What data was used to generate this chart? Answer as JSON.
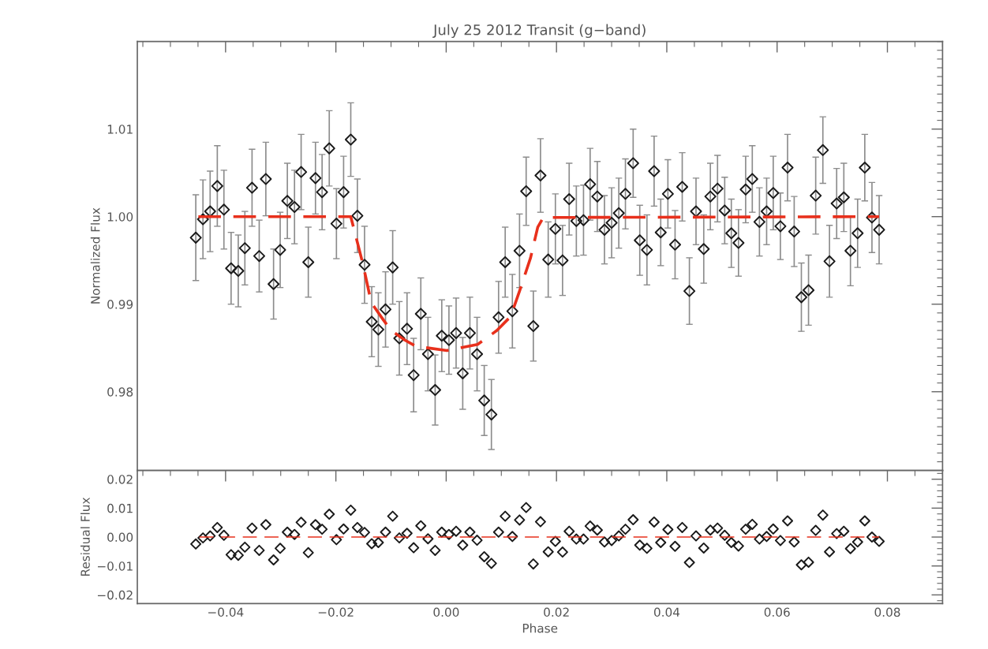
{
  "chart_data": [
    {
      "type": "scatter",
      "title": "July 25 2012 Transit (g−band)",
      "ylabel": "Normalized Flux",
      "xlim": [
        -0.056,
        0.09
      ],
      "ylim": [
        0.971,
        1.02
      ],
      "xticks": [
        {
          "value": -0.04,
          "label": null
        },
        {
          "value": -0.02,
          "label": null
        },
        {
          "value": 0.0,
          "label": null
        },
        {
          "value": 0.02,
          "label": null
        },
        {
          "value": 0.04,
          "label": null
        },
        {
          "value": 0.06,
          "label": null
        },
        {
          "value": 0.08,
          "label": null
        }
      ],
      "yticks": [
        0.98,
        0.99,
        {
          "value": 1.0,
          "label": "1.00"
        },
        1.01
      ],
      "tick_labels": "y",
      "series": [
        {
          "marker": "diamond",
          "color": "#1a1a1a",
          "x": [
            -0.0454,
            -0.0441,
            -0.0428,
            -0.0415,
            -0.0403,
            -0.039,
            -0.0377,
            -0.0365,
            -0.0352,
            -0.0339,
            -0.0327,
            -0.0313,
            -0.0301,
            -0.0288,
            -0.0275,
            -0.0263,
            -0.025,
            -0.0237,
            -0.0225,
            -0.0212,
            -0.0199,
            -0.0186,
            -0.0173,
            -0.0161,
            -0.0148,
            -0.0135,
            -0.0123,
            -0.011,
            -0.0097,
            -0.0085,
            -0.0071,
            -0.0059,
            -0.0046,
            -0.0033,
            -0.002,
            -0.0008,
            0.0005,
            0.0018,
            0.003,
            0.0043,
            0.0056,
            0.0069,
            0.0082,
            0.0095,
            0.0107,
            0.012,
            0.0133,
            0.0145,
            0.0158,
            0.0171,
            0.0185,
            0.0198,
            0.0211,
            0.0223,
            0.0236,
            0.0249,
            0.0261,
            0.0274,
            0.0287,
            0.03,
            0.0313,
            0.0325,
            0.0339,
            0.0351,
            0.0364,
            0.0377,
            0.0389,
            0.0402,
            0.0415,
            0.0428,
            0.0441,
            0.0453,
            0.0467,
            0.0479,
            0.0492,
            0.0505,
            0.0517,
            0.053,
            0.0543,
            0.0555,
            0.0568,
            0.0581,
            0.0593,
            0.0606,
            0.0619,
            0.0631,
            0.0644,
            0.0657,
            0.067,
            0.0683,
            0.0695,
            0.0708,
            0.0721,
            0.0733,
            0.0746,
            0.0759,
            0.0772,
            0.0785
          ],
          "values": [
            0.9976,
            0.9997,
            1.0006,
            1.0035,
            1.0008,
            0.9941,
            0.9938,
            0.9964,
            1.0033,
            0.9955,
            1.0043,
            0.9923,
            0.9962,
            1.0018,
            1.0011,
            1.0051,
            0.9948,
            1.0044,
            1.0028,
            1.0078,
            0.9992,
            1.0028,
            1.0088,
            1.0001,
            0.9945,
            0.988,
            0.9871,
            0.9894,
            0.9942,
            0.9861,
            0.9872,
            0.9819,
            0.9889,
            0.9843,
            0.9802,
            0.9864,
            0.9859,
            0.9867,
            0.9821,
            0.9867,
            0.9843,
            0.979,
            0.9774,
            0.9885,
            0.9948,
            0.9892,
            0.9961,
            1.0029,
            0.9875,
            1.0047,
            0.9951,
            0.9986,
            0.995,
            1.002,
            0.9995,
            0.9996,
            1.0037,
            1.0023,
            0.9985,
            0.9993,
            1.0004,
            1.0026,
            1.0061,
            0.9973,
            0.9962,
            1.0052,
            0.9982,
            1.0026,
            0.9968,
            1.0034,
            0.9915,
            1.0006,
            0.9963,
            1.0023,
            1.0032,
            1.0007,
            0.9981,
            0.997,
            1.0031,
            1.0043,
            0.9994,
            1.0006,
            1.0027,
            0.9989,
            1.0056,
            0.9983,
            0.9908,
            0.9916,
            1.0024,
            1.0076,
            0.9949,
            1.0015,
            1.0022,
            0.9961,
            0.9981,
            1.0056,
            0.9999,
            0.9985
          ],
          "errors": [
            0.0049,
            0.0045,
            0.0046,
            0.0046,
            0.0045,
            0.0041,
            0.0041,
            0.0042,
            0.0044,
            0.0041,
            0.0042,
            0.004,
            0.0043,
            0.0043,
            0.0042,
            0.0043,
            0.004,
            0.0041,
            0.0043,
            0.0043,
            0.004,
            0.0041,
            0.0042,
            0.0042,
            0.0044,
            0.004,
            0.0042,
            0.0043,
            0.0042,
            0.0042,
            0.0041,
            0.0042,
            0.0041,
            0.0042,
            0.004,
            0.0041,
            0.0039,
            0.004,
            0.0041,
            0.0041,
            0.0042,
            0.004,
            0.004,
            0.0041,
            0.004,
            0.0042,
            0.0042,
            0.0039,
            0.004,
            0.0042,
            0.0043,
            0.004,
            0.004,
            0.0041,
            0.004,
            0.004,
            0.0041,
            0.004,
            0.0039,
            0.004,
            0.004,
            0.004,
            0.0039,
            0.004,
            0.004,
            0.004,
            0.0038,
            0.0039,
            0.0039,
            0.0039,
            0.0038,
            0.0038,
            0.0039,
            0.0038,
            0.0038,
            0.0038,
            0.0039,
            0.0038,
            0.0038,
            0.0038,
            0.0039,
            0.0038,
            0.0042,
            0.0038,
            0.0038,
            0.004,
            0.0039,
            0.004,
            0.0044,
            0.0038,
            0.0041,
            0.004,
            0.0039,
            0.004,
            0.0039,
            0.0038,
            0.004,
            0.0039
          ]
        },
        {
          "type": "line",
          "line_style": "dashed",
          "color": "#e8301c",
          "x": [
            -0.0454,
            -0.0173,
            -0.0151,
            -0.0136,
            -0.0115,
            -0.01,
            -0.0075,
            -0.0055,
            0.0001,
            0.0057,
            0.0092,
            0.0117,
            0.0133,
            0.0153,
            0.0166,
            0.0176,
            0.0785
          ],
          "values": [
            1.0,
            1.0,
            0.9946,
            0.9902,
            0.9883,
            0.987,
            0.9859,
            0.9852,
            0.9847,
            0.9854,
            0.987,
            0.9886,
            0.9915,
            0.9953,
            0.9988,
            0.9999,
            1.0
          ]
        }
      ]
    },
    {
      "type": "scatter",
      "xlabel": "Phase",
      "ylabel": "Residual Flux",
      "xlim": [
        -0.056,
        0.09
      ],
      "ylim": [
        -0.023,
        0.023
      ],
      "xticks": [
        {
          "value": -0.04,
          "label": "−0.04"
        },
        {
          "value": -0.02,
          "label": "−0.02"
        },
        {
          "value": 0.0,
          "label": "0.00"
        },
        {
          "value": 0.02,
          "label": "0.02"
        },
        {
          "value": 0.04,
          "label": "0.04"
        },
        {
          "value": 0.06,
          "label": "0.06"
        },
        {
          "value": 0.08,
          "label": "0.08"
        }
      ],
      "yticks": [
        {
          "value": -0.02,
          "label": "−0.02"
        },
        {
          "value": -0.01,
          "label": "−0.01"
        },
        {
          "value": 0.0,
          "label": "0.00"
        },
        0.01,
        0.02
      ],
      "series": [
        {
          "marker": "diamond",
          "color": "#1a1a1a",
          "x": [
            -0.0454,
            -0.0441,
            -0.0428,
            -0.0415,
            -0.0403,
            -0.039,
            -0.0377,
            -0.0365,
            -0.0352,
            -0.0339,
            -0.0327,
            -0.0313,
            -0.0301,
            -0.0288,
            -0.0275,
            -0.0263,
            -0.025,
            -0.0237,
            -0.0225,
            -0.0212,
            -0.0199,
            -0.0186,
            -0.0173,
            -0.0161,
            -0.0148,
            -0.0135,
            -0.0123,
            -0.011,
            -0.0097,
            -0.0085,
            -0.0071,
            -0.0059,
            -0.0046,
            -0.0033,
            -0.002,
            -0.0008,
            0.0005,
            0.0018,
            0.003,
            0.0043,
            0.0056,
            0.0069,
            0.0082,
            0.0095,
            0.0107,
            0.012,
            0.0133,
            0.0145,
            0.0158,
            0.0171,
            0.0185,
            0.0198,
            0.0211,
            0.0223,
            0.0236,
            0.0249,
            0.0261,
            0.0274,
            0.0287,
            0.03,
            0.0313,
            0.0325,
            0.0339,
            0.0351,
            0.0364,
            0.0377,
            0.0389,
            0.0402,
            0.0415,
            0.0428,
            0.0441,
            0.0453,
            0.0467,
            0.0479,
            0.0492,
            0.0505,
            0.0517,
            0.053,
            0.0543,
            0.0555,
            0.0568,
            0.0581,
            0.0593,
            0.0606,
            0.0619,
            0.0631,
            0.0644,
            0.0657,
            0.067,
            0.0683,
            0.0695,
            0.0708,
            0.0721,
            0.0733,
            0.0746,
            0.0759,
            0.0772,
            0.0785
          ],
          "values": [
            -0.0024,
            -0.0003,
            0.0004,
            0.0033,
            0.0006,
            -0.0061,
            -0.0063,
            -0.0035,
            0.0031,
            -0.0046,
            0.0043,
            -0.0079,
            -0.0039,
            0.0017,
            0.0009,
            0.0051,
            -0.0054,
            0.0043,
            0.0027,
            0.0079,
            -0.0009,
            0.0028,
            0.0093,
            0.0033,
            0.0016,
            -0.0023,
            -0.0019,
            0.0017,
            0.0072,
            -0.0003,
            0.0013,
            -0.0037,
            0.0039,
            -0.0006,
            -0.0046,
            0.0017,
            0.0009,
            0.002,
            -0.0028,
            0.0017,
            -0.0011,
            -0.0068,
            -0.0091,
            0.0017,
            0.0072,
            0.0002,
            0.0059,
            0.0102,
            -0.0093,
            0.0053,
            -0.0051,
            -0.0015,
            -0.0052,
            0.002,
            -0.0007,
            -0.0007,
            0.0038,
            0.0024,
            -0.0017,
            -0.0012,
            0.0004,
            0.0027,
            0.006,
            -0.0028,
            -0.0039,
            0.0052,
            -0.0019,
            0.0026,
            -0.0032,
            0.0033,
            -0.0088,
            0.0004,
            -0.0038,
            0.0024,
            0.0031,
            0.0006,
            -0.0019,
            -0.0031,
            0.0027,
            0.0044,
            -0.0007,
            0.0002,
            0.0028,
            -0.0012,
            0.0056,
            -0.0017,
            -0.0096,
            -0.0087,
            0.0023,
            0.0076,
            -0.0051,
            0.0012,
            0.002,
            -0.004,
            -0.0017,
            0.0056,
            0.0,
            -0.0015
          ]
        },
        {
          "type": "line",
          "line_style": "dashed",
          "color": "#e8301c",
          "x": [
            -0.0454,
            0.0785
          ],
          "values": [
            0.0,
            0.0
          ]
        }
      ]
    }
  ]
}
